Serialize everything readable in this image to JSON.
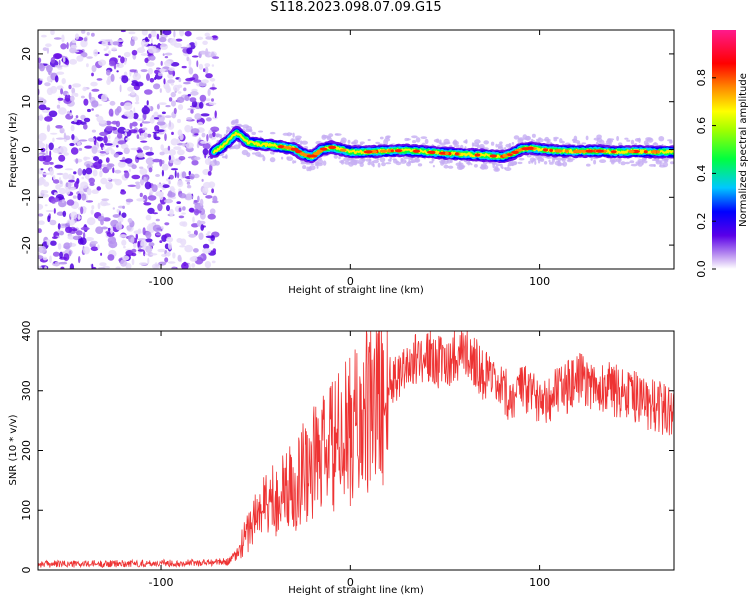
{
  "title": "S118.2023.098.07.09.G15",
  "chart_data": [
    {
      "type": "heatmap",
      "xlabel": "Height of straight line (km)",
      "ylabel": "Frequency (Hz)",
      "xlim": [
        -165,
        171
      ],
      "ylim": [
        -25,
        25
      ],
      "x_ticks": [
        -100,
        0,
        100
      ],
      "x_tick_labels": [
        "-100",
        "0",
        "100"
      ],
      "y_ticks": [
        -20,
        -10,
        0,
        10,
        20
      ],
      "y_tick_labels": [
        "-20",
        "-10",
        "0",
        "10",
        "20"
      ],
      "colorbar": {
        "label": "Normalized spectral amplitude",
        "range": [
          0.0,
          1.0
        ],
        "ticks": [
          0.0,
          0.2,
          0.4,
          0.6,
          0.8
        ],
        "tick_labels": [
          "0.0",
          "0.2",
          "0.4",
          "0.6",
          "0.8"
        ]
      },
      "noise_region_x": [
        -165,
        -71
      ],
      "signal_trace": {
        "x": [
          -72,
          -68,
          -64,
          -60,
          -57,
          -54,
          -50,
          -45,
          -40,
          -35,
          -30,
          -25,
          -20,
          -15,
          -10,
          0,
          10,
          20,
          30,
          40,
          50,
          60,
          70,
          80,
          85,
          90,
          95,
          100,
          110,
          120,
          130,
          140,
          150,
          160,
          171
        ],
        "y": [
          -0.5,
          0.5,
          2.0,
          3.5,
          2.5,
          1.5,
          1.2,
          1.0,
          0.8,
          0.5,
          0.2,
          -1.0,
          -1.5,
          0.0,
          0.5,
          -0.5,
          -0.5,
          -0.3,
          -0.2,
          -0.5,
          -0.8,
          -1.0,
          -1.2,
          -1.5,
          -1.0,
          0.0,
          0.3,
          0.0,
          -0.3,
          -0.4,
          -0.3,
          -0.5,
          -0.4,
          -0.5,
          -0.5
        ]
      }
    },
    {
      "type": "line",
      "xlabel": "Height of straight line (km)",
      "ylabel": "SNR (10 * v/v)",
      "xlim": [
        -165,
        171
      ],
      "ylim": [
        0,
        400
      ],
      "x_ticks": [
        -100,
        0,
        100
      ],
      "x_tick_labels": [
        "-100",
        "0",
        "100"
      ],
      "y_ticks": [
        0,
        100,
        200,
        300,
        400
      ],
      "y_tick_labels": [
        "0",
        "100",
        "200",
        "300",
        "400"
      ],
      "line_color": "#ee3333",
      "x": [
        -165,
        -140,
        -110,
        -80,
        -65,
        -60,
        -55,
        -50,
        -45,
        -40,
        -35,
        -30,
        -25,
        -20,
        -15,
        -10,
        -5,
        0,
        5,
        10,
        15,
        20,
        25,
        30,
        35,
        40,
        45,
        50,
        55,
        60,
        65,
        70,
        75,
        80,
        85,
        90,
        95,
        100,
        105,
        110,
        115,
        120,
        125,
        130,
        135,
        140,
        145,
        150,
        155,
        160,
        165,
        171
      ],
      "y": [
        10,
        10,
        11,
        12,
        14,
        25,
        60,
        90,
        110,
        120,
        130,
        140,
        165,
        180,
        190,
        205,
        215,
        235,
        250,
        265,
        285,
        310,
        330,
        345,
        352,
        360,
        350,
        345,
        360,
        365,
        355,
        330,
        310,
        295,
        290,
        300,
        295,
        290,
        290,
        300,
        305,
        320,
        315,
        310,
        305,
        300,
        300,
        290,
        280,
        275,
        270,
        270
      ]
    }
  ]
}
